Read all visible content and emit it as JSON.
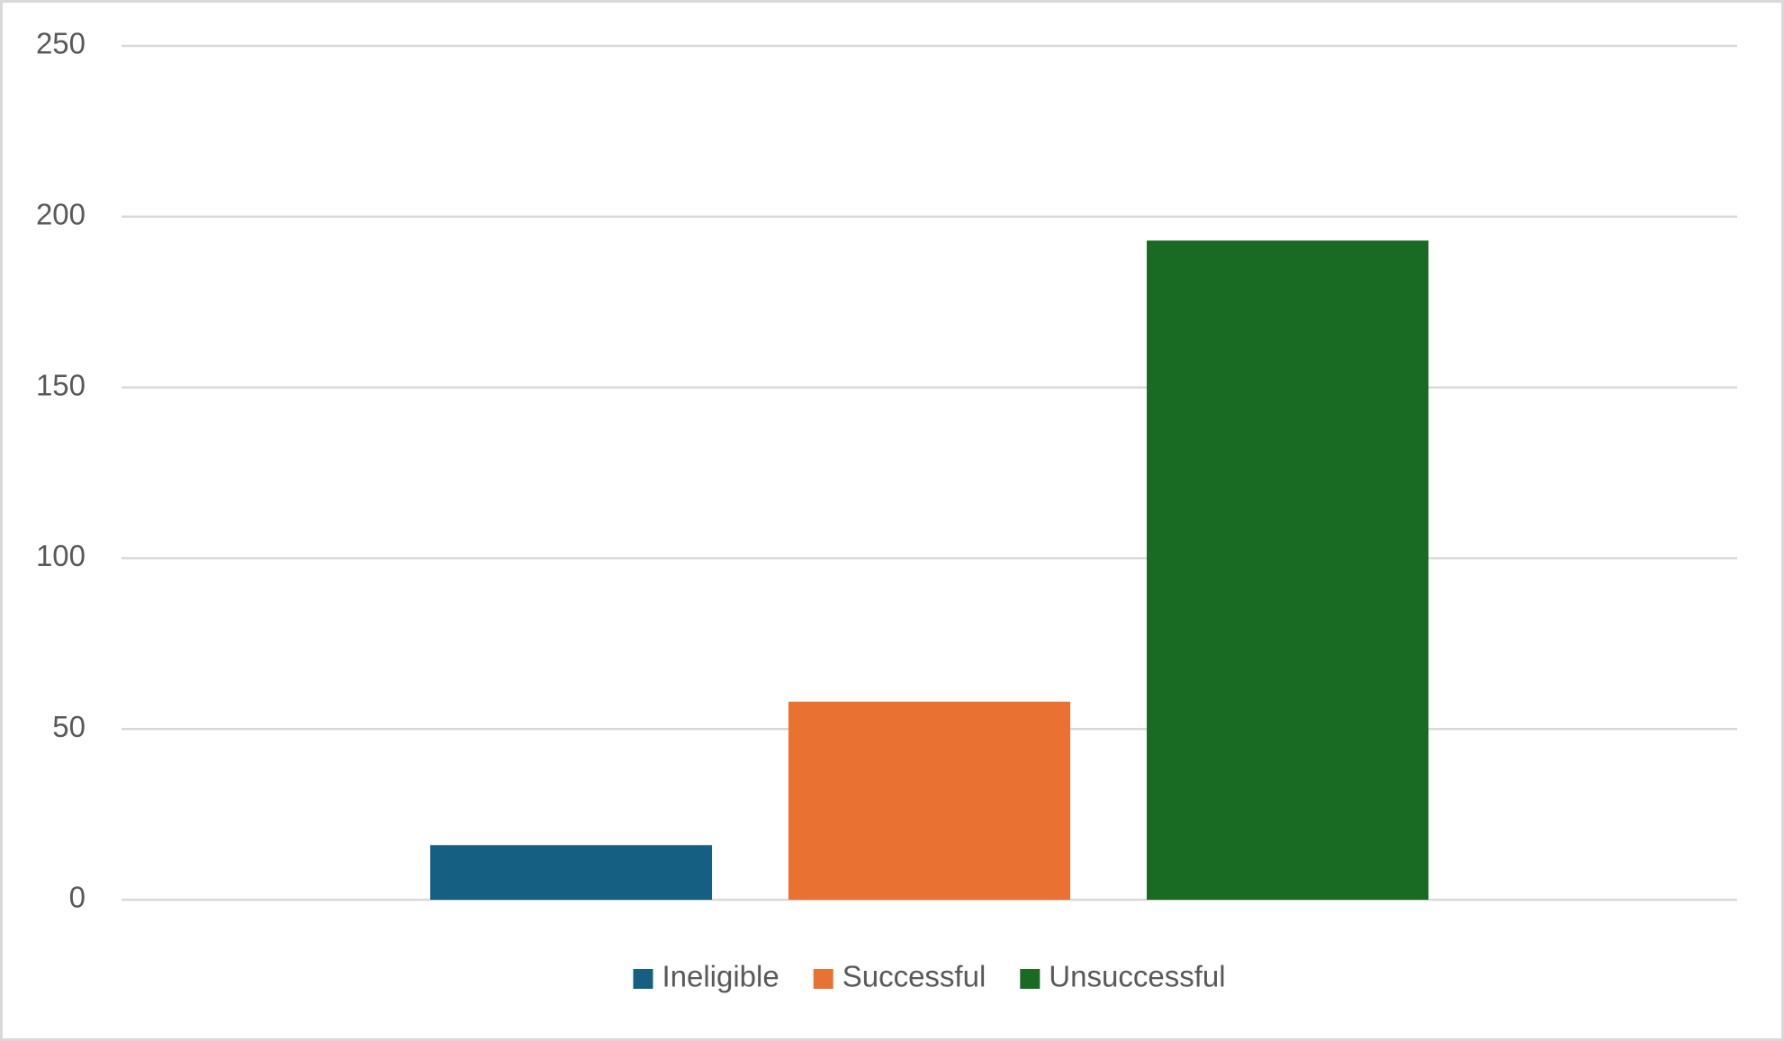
{
  "chart_data": {
    "type": "bar",
    "categories": [
      null
    ],
    "series": [
      {
        "name": "Ineligible",
        "color": "#156082",
        "values": [
          16
        ]
      },
      {
        "name": "Successful",
        "color": "#e97132",
        "values": [
          58
        ]
      },
      {
        "name": "Unsuccessful",
        "color": "#196b24",
        "values": [
          193
        ]
      }
    ],
    "ylim": [
      0,
      250
    ],
    "yticks": [
      0,
      50,
      100,
      150,
      200,
      250
    ],
    "grid": true,
    "legend": "bottom"
  }
}
